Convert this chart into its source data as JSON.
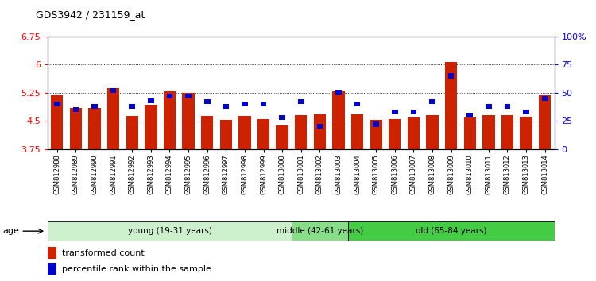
{
  "title": "GDS3942 / 231159_at",
  "samples": [
    "GSM812988",
    "GSM812989",
    "GSM812990",
    "GSM812991",
    "GSM812992",
    "GSM812993",
    "GSM812994",
    "GSM812995",
    "GSM812996",
    "GSM812997",
    "GSM812998",
    "GSM812999",
    "GSM813000",
    "GSM813001",
    "GSM813002",
    "GSM813003",
    "GSM813004",
    "GSM813005",
    "GSM813006",
    "GSM813007",
    "GSM813008",
    "GSM813009",
    "GSM813010",
    "GSM813011",
    "GSM813012",
    "GSM813013",
    "GSM813014"
  ],
  "red_values": [
    5.18,
    4.85,
    4.85,
    5.38,
    4.63,
    4.93,
    5.28,
    5.25,
    4.63,
    4.52,
    4.63,
    4.55,
    4.38,
    4.65,
    4.68,
    5.28,
    4.68,
    4.52,
    4.55,
    4.58,
    4.65,
    6.08,
    4.58,
    4.65,
    4.65,
    4.62,
    5.18
  ],
  "blue_percentiles": [
    40,
    35,
    38,
    52,
    38,
    43,
    47,
    47,
    42,
    38,
    40,
    40,
    28,
    42,
    20,
    50,
    40,
    22,
    33,
    33,
    42,
    65,
    30,
    38,
    38,
    33,
    45
  ],
  "ylim_left": [
    3.75,
    6.75
  ],
  "ylim_right": [
    0,
    100
  ],
  "yticks_left": [
    3.75,
    4.5,
    5.25,
    6.0,
    6.75
  ],
  "yticks_right": [
    0,
    25,
    50,
    75,
    100
  ],
  "ytick_labels_left": [
    "3.75",
    "4.5",
    "5.25",
    "6",
    "6.75"
  ],
  "ytick_labels_right": [
    "0",
    "25",
    "50",
    "75",
    "100%"
  ],
  "groups": [
    {
      "label": "young (19-31 years)",
      "start": 0,
      "end": 13,
      "color": "#ccf0cc"
    },
    {
      "label": "middle (42-61 years)",
      "start": 13,
      "end": 16,
      "color": "#88dd88"
    },
    {
      "label": "old (65-84 years)",
      "start": 16,
      "end": 27,
      "color": "#44cc44"
    }
  ],
  "bar_color": "#cc2200",
  "blue_color": "#0000cc",
  "base_value": 3.75,
  "legend_red": "transformed count",
  "legend_blue": "percentile rank within the sample"
}
